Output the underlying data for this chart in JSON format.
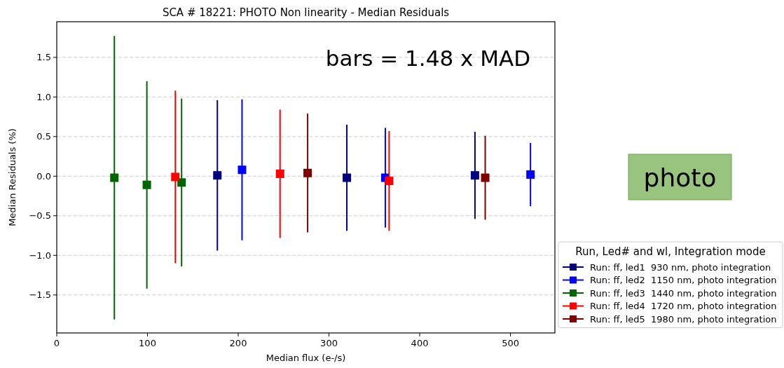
{
  "chart_data": {
    "type": "scatter",
    "title": "SCA # 18221: PHOTO Non linearity - Median Residuals",
    "xlabel": "Median flux (e-/s)",
    "ylabel": "Median Residuals (%)",
    "legend_title": "Run, Led# and wl, Integration mode",
    "annotations": [
      "bars = 1.48 x MAD",
      "photo"
    ],
    "xlim": [
      0,
      549
    ],
    "xticks": [
      0,
      100,
      200,
      300,
      400,
      500
    ],
    "ylim": [
      -1.98,
      1.95
    ],
    "yticks": [
      {
        "value": -1.5,
        "label": "−1.5"
      },
      {
        "value": -1,
        "label": "−1.0"
      },
      {
        "value": -0.5,
        "label": "−0.5"
      },
      {
        "value": 0,
        "label": "0.0"
      },
      {
        "value": 0.5,
        "label": "0.5"
      },
      {
        "value": 1,
        "label": "1.0"
      },
      {
        "value": 1.5,
        "label": "1.5"
      }
    ],
    "grid": "y",
    "legend": "right",
    "marker": "square",
    "series": [
      {
        "name": "Run: ff, led1  930 nm, photo integration",
        "color": "#000080",
        "x": [
          177,
          319.7,
          460.9
        ],
        "values": [
          0.01,
          -0.02,
          0.01
        ],
        "errors": [
          0.95,
          0.67,
          0.55
        ]
      },
      {
        "name": "Run: ff, led2  1150 nm, photo integration",
        "color": "#0000ff",
        "x": [
          204.2,
          362.1,
          522.1
        ],
        "values": [
          0.08,
          -0.02,
          0.02
        ],
        "errors": [
          0.89,
          0.63,
          0.4
        ]
      },
      {
        "name": "Run: ff, led3  1440 nm, photo integration",
        "color": "#006400",
        "x": [
          63.5,
          99.3,
          137.6
        ],
        "values": [
          -0.02,
          -0.11,
          -0.08
        ],
        "errors": [
          1.79,
          1.31,
          1.06
        ]
      },
      {
        "name": "Run: ff, led4  1720 nm, photo integration",
        "color": "#ff0000",
        "x": [
          130.7,
          246.1,
          366.3
        ],
        "values": [
          -0.01,
          0.03,
          -0.06
        ],
        "errors": [
          1.09,
          0.81,
          0.63
        ]
      },
      {
        "name": "Run: ff, led5  1980 nm, photo integration",
        "color": "#800000",
        "x": [
          276.5,
          472.2
        ],
        "values": [
          0.04,
          -0.02
        ],
        "errors": [
          0.75,
          0.53
        ]
      }
    ]
  }
}
